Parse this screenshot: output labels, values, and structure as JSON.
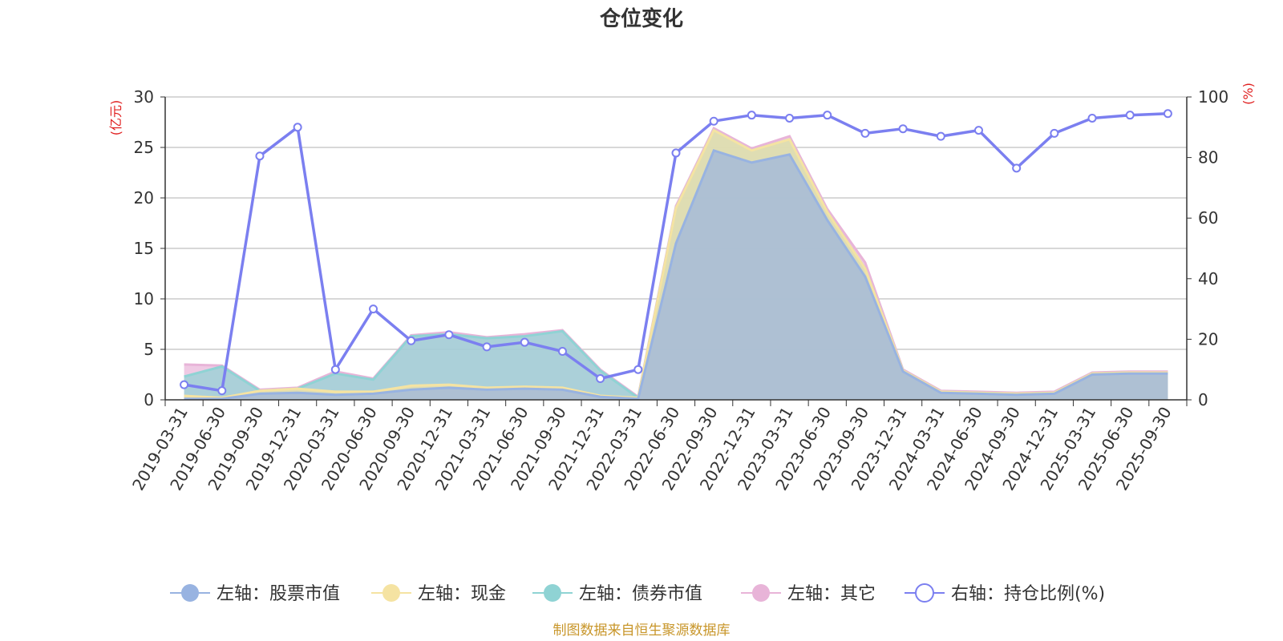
{
  "chart_data": {
    "type": "area",
    "title": "仓位变化",
    "left_axis_unit": "(亿元)",
    "right_axis_unit": "(%)",
    "left_ylim": [
      0,
      30
    ],
    "left_ticks": [
      0,
      5,
      10,
      15,
      20,
      25,
      30
    ],
    "right_ylim": [
      0,
      100
    ],
    "right_ticks": [
      0,
      20,
      40,
      60,
      80,
      100
    ],
    "grid": true,
    "legend_position": "bottom",
    "categories": [
      "2019-03-31",
      "2019-06-30",
      "2019-09-30",
      "2019-12-31",
      "2020-03-31",
      "2020-06-30",
      "2020-09-30",
      "2020-12-31",
      "2021-03-31",
      "2021-06-30",
      "2021-09-30",
      "2021-12-31",
      "2022-03-31",
      "2022-06-30",
      "2022-09-30",
      "2022-12-31",
      "2023-03-31",
      "2023-06-30",
      "2023-09-30",
      "2023-12-31",
      "2024-03-31",
      "2024-06-30",
      "2024-09-30",
      "2024-12-31",
      "2025-03-31",
      "2025-06-30",
      "2025-09-30"
    ],
    "series": [
      {
        "name": "左轴：股票市值",
        "axis": "left",
        "kind": "stacked-area",
        "color": "#98b3e1",
        "values": [
          0.1,
          0.1,
          0.6,
          0.7,
          0.5,
          0.6,
          1.0,
          1.2,
          1.0,
          1.1,
          1.0,
          0.3,
          0.1,
          15.5,
          24.7,
          23.5,
          24.3,
          17.8,
          12.2,
          2.8,
          0.7,
          0.6,
          0.5,
          0.6,
          2.5,
          2.6,
          2.6
        ]
      },
      {
        "name": "左轴：现金",
        "axis": "left",
        "kind": "stacked-area",
        "color": "#f5e3a2",
        "values": [
          0.3,
          0.1,
          0.3,
          0.4,
          0.3,
          0.2,
          0.4,
          0.3,
          0.2,
          0.2,
          0.2,
          0.1,
          0.1,
          3.5,
          2.0,
          1.2,
          1.5,
          0.8,
          0.8,
          0.1,
          0.1,
          0.1,
          0.1,
          0.1,
          0.1,
          0.1,
          0.1
        ]
      },
      {
        "name": "左轴：债券市值",
        "axis": "left",
        "kind": "stacked-area",
        "color": "#8fd3d4",
        "values": [
          1.9,
          3.1,
          0.0,
          0.0,
          1.8,
          1.2,
          4.9,
          5.0,
          4.9,
          5.0,
          5.6,
          2.5,
          0.0,
          0.0,
          0.0,
          0.0,
          0.0,
          0.0,
          0.0,
          0.0,
          0.0,
          0.0,
          0.0,
          0.0,
          0.0,
          0.0,
          0.0
        ]
      },
      {
        "name": "左轴：其它",
        "axis": "left",
        "kind": "stacked-area",
        "color": "#e8b4d8",
        "values": [
          1.2,
          0.1,
          0.1,
          0.1,
          0.2,
          0.1,
          0.1,
          0.2,
          0.1,
          0.2,
          0.1,
          0.1,
          0.1,
          0.2,
          0.2,
          0.2,
          0.3,
          0.3,
          0.6,
          0.1,
          0.1,
          0.1,
          0.1,
          0.1,
          0.1,
          0.1,
          0.1
        ]
      },
      {
        "name": "右轴：持仓比例(%)",
        "axis": "right",
        "kind": "line",
        "color": "#7b7ff0",
        "values": [
          5,
          3,
          80.5,
          90,
          10,
          30,
          19.5,
          21.5,
          17.5,
          19,
          16,
          7,
          10,
          81.5,
          92,
          94,
          93,
          94,
          88,
          89.5,
          87,
          89,
          76.5,
          88,
          93,
          94,
          94.5
        ]
      }
    ],
    "source_text": "制图数据来自恒生聚源数据库",
    "colors": {
      "axis_unit": "#e02020",
      "source": "#c8962a",
      "grid": "#cccccc",
      "axis_line": "#333333"
    }
  }
}
